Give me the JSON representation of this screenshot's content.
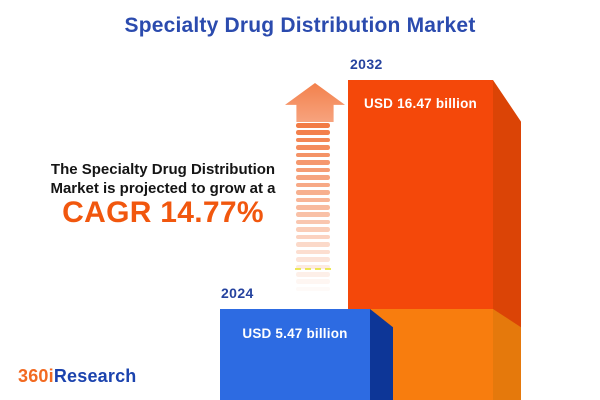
{
  "page": {
    "title": "Specialty Drug Distribution Market"
  },
  "intro": {
    "line1": "The Specialty Drug Distribution",
    "line2": "Market is projected to grow at a",
    "cagr_label": "CAGR 14.77%"
  },
  "chart_data": {
    "type": "bar",
    "title": "Specialty Drug Distribution Market",
    "categories": [
      "2024",
      "2032"
    ],
    "values": [
      5.47,
      16.47
    ],
    "value_unit": "USD billion",
    "value_labels": [
      "USD 5.47 billion",
      "USD 16.47 billion"
    ],
    "growth_metric": {
      "name": "CAGR",
      "value_percent": 14.77
    },
    "orientation": "vertical",
    "legend": "none",
    "axes": "none",
    "style": "3d-infographic-bars-with-growth-arrow"
  },
  "bars": [
    {
      "year": "2024",
      "label": "USD 5.47 billion"
    },
    {
      "year": "2032",
      "label": "USD 16.47 billion"
    }
  ],
  "logo": {
    "part1": "360i",
    "part2": "Research"
  },
  "arrow": {
    "stripe_count": 23
  },
  "colors": {
    "title_blue": "#2B4BAE",
    "year_blue": "#26439F",
    "text_dark": "#151515",
    "cagr_orange": "#F1570E",
    "bar2024_face": "#2D6BE2",
    "bar2024_side": "#0D3697",
    "bar2032_face": "#F4480A",
    "bar2032_side": "#DB4406",
    "bar2032_face_base": "#F87D0E",
    "bar2032_side_base": "#E5790C",
    "arrow_head": "#F4875A",
    "arrow_stripe": "#F27B45",
    "logo_orange": "#F26A21",
    "logo_blue": "#1B43AE",
    "dash_yellow": "#E9E53B"
  }
}
